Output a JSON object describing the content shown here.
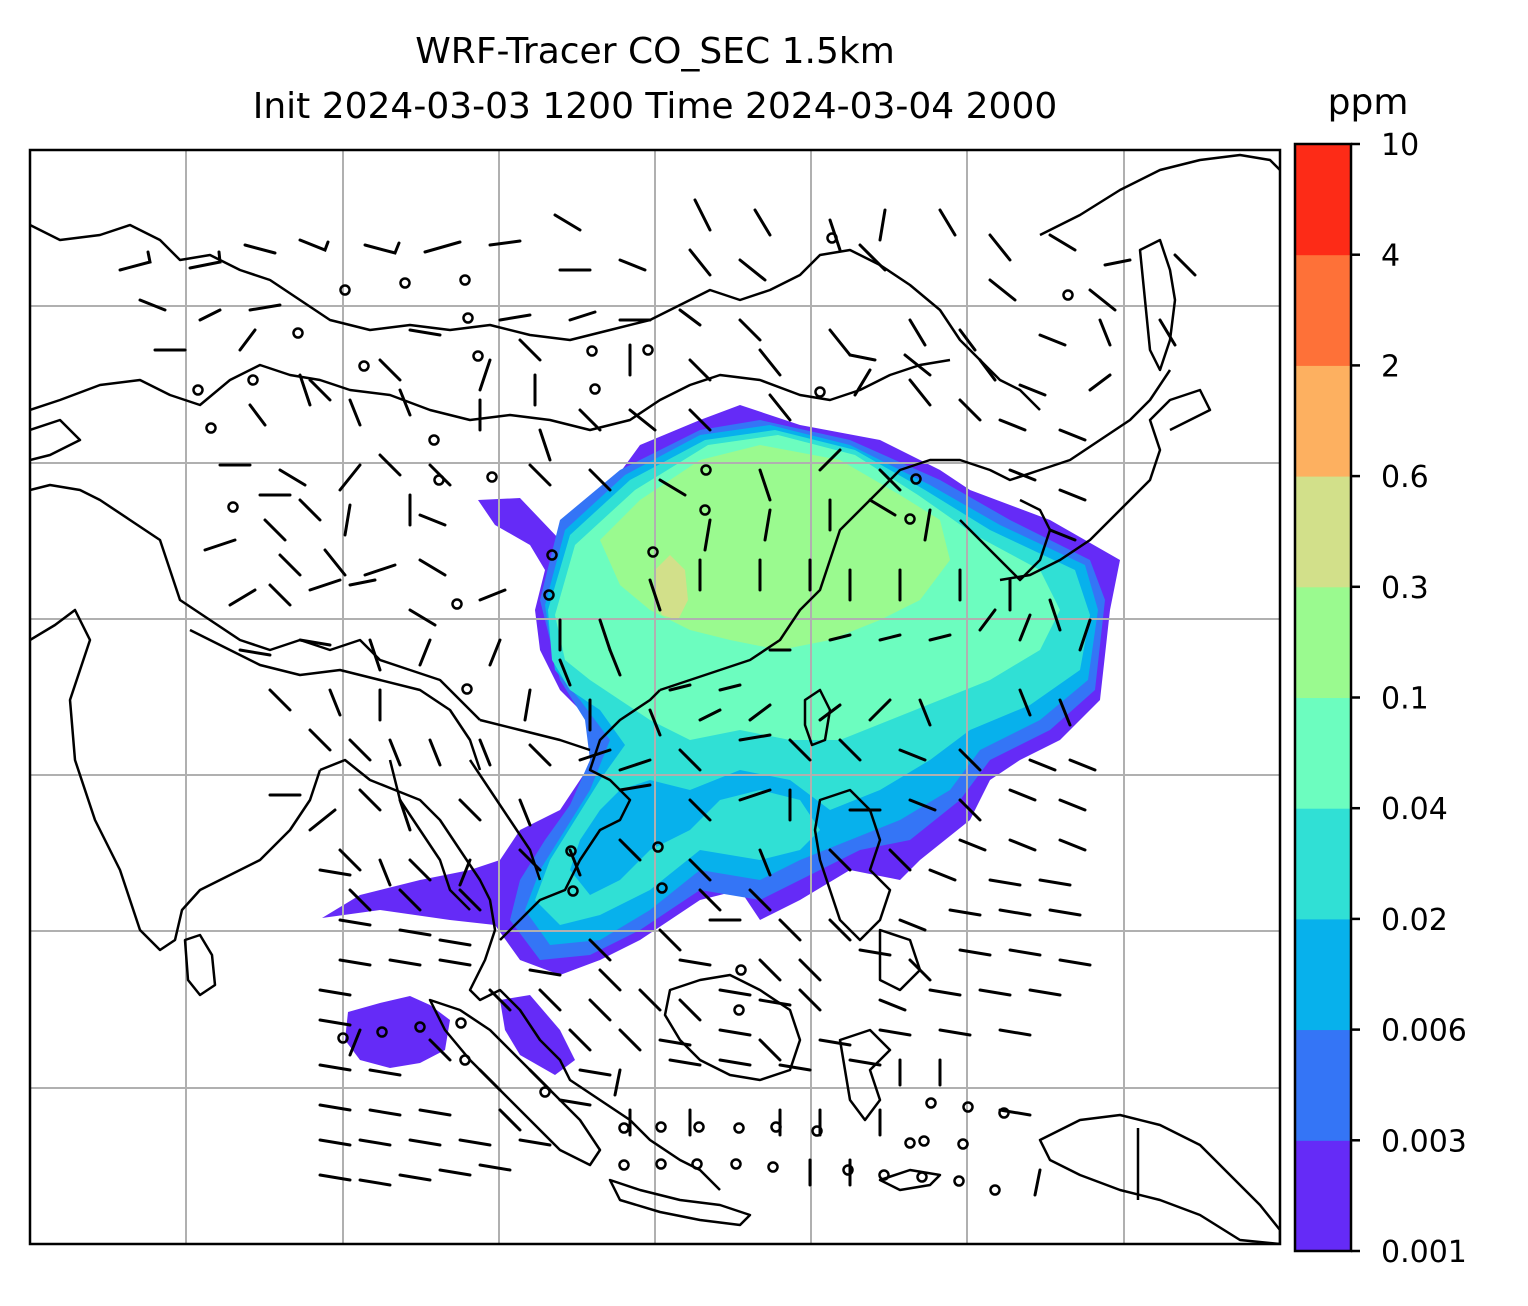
{
  "title": {
    "line1": "WRF-Tracer CO_SEC 1.5km",
    "line2": "Init 2024-03-03 1200 Time 2024-03-04 2000"
  },
  "colorbar": {
    "unit": "ppm",
    "levels": [
      "0.001",
      "0.003",
      "0.006",
      "0.02",
      "0.04",
      "0.1",
      "0.3",
      "0.6",
      "2",
      "4",
      "10"
    ],
    "colors": [
      "#652bf7",
      "#3475f6",
      "#07b1ec",
      "#30e0d5",
      "#6cfdbf",
      "#9afa8f",
      "#d2e08a",
      "#fdb060",
      "#fe7138",
      "#fd2b17"
    ]
  },
  "map": {
    "gridlines": "on",
    "overlays": [
      "coastlines",
      "country-borders",
      "wind-barbs",
      "tracer-concentration-fill"
    ]
  }
}
